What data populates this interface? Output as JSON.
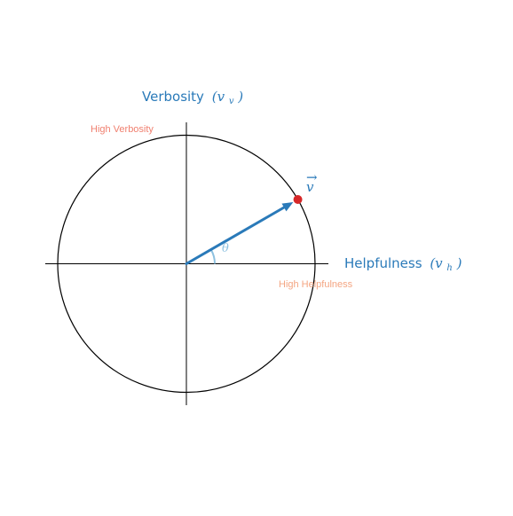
{
  "diagram": {
    "y_axis_title": "Verbosity",
    "y_axis_symbol": "(v",
    "y_axis_subscript": "v",
    "y_axis_close": ")",
    "x_axis_title": "Helpfulness",
    "x_axis_symbol": "(v",
    "x_axis_subscript": "h",
    "x_axis_close": ")",
    "high_verbosity_label": "High Verbosity",
    "high_helpfulness_label": "High Helpfulness",
    "vector_label": "v",
    "vector_arrow": "→",
    "angle_label": "θ",
    "angle_degrees": 30,
    "vector_magnitude": 1,
    "colors": {
      "axis_title": "#2a7ab9",
      "vector": "#2a7ab9",
      "angle_arc": "#8ec1e0",
      "endpoint": "#d62728",
      "high_verbosity": "#f08070",
      "high_helpfulness": "#f4a582",
      "circle": "#000000",
      "axes": "#000000"
    }
  }
}
